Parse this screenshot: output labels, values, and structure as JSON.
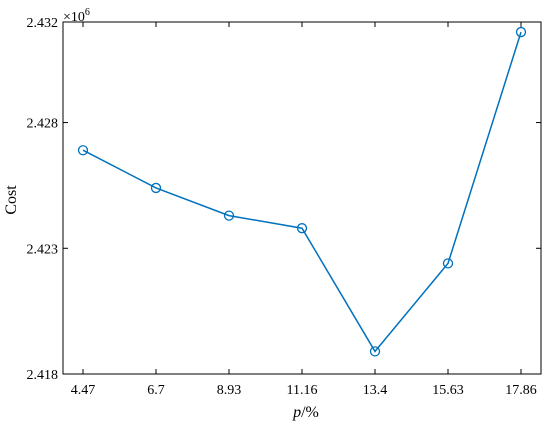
{
  "chart_data": {
    "type": "line",
    "x": [
      4.47,
      6.7,
      8.93,
      11.16,
      13.4,
      15.63,
      17.86
    ],
    "x_tick_labels": [
      "4.47",
      "6.7",
      "8.93",
      "11.16",
      "13.4",
      "15.63",
      "17.86"
    ],
    "y": [
      2.4269,
      2.4254,
      2.4243,
      2.4238,
      2.4189,
      2.4224,
      2.4316
    ],
    "y_ticks": [
      2.418,
      2.423,
      2.428,
      2.432
    ],
    "y_tick_labels": [
      "2.418",
      "2.423",
      "2.428",
      "2.432"
    ],
    "ylim": [
      2.418,
      2.432
    ],
    "y_multiplier": "×10",
    "y_multiplier_exp": "6",
    "xlabel_italic": "p",
    "xlabel_rest": "/%",
    "ylabel": "Cost",
    "marker": "circle",
    "line_color": "#0072BD",
    "grid": false
  }
}
